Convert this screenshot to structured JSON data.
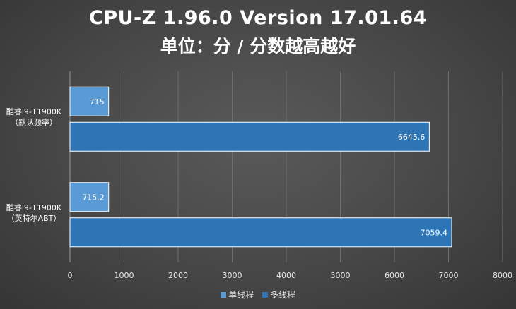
{
  "title": "CPU-Z 1.96.0 Version 17.01.64",
  "subtitle": "单位：分 / 分数越高越好",
  "colors": {
    "single": "#5b9bd5",
    "multi": "#2e75b6",
    "grid": "#6e6e6e",
    "axis_text": "#e6e6e6"
  },
  "chart_data": {
    "type": "bar",
    "orientation": "horizontal",
    "title": "CPU-Z 1.96.0 Version 17.01.64",
    "subtitle": "单位：分 / 分数越高越好",
    "categories": [
      {
        "line1": "酷睿i9-11900K",
        "line2": "（默认频率）"
      },
      {
        "line1": "酷睿i9-11900K",
        "line2": "（英特尔ABT）"
      }
    ],
    "series": [
      {
        "name": "单线程",
        "values": [
          715,
          715.2
        ],
        "labels": [
          "715",
          "715.2"
        ]
      },
      {
        "name": "多线程",
        "values": [
          6645.6,
          7059.4
        ],
        "labels": [
          "6645.6",
          "7059.4"
        ]
      }
    ],
    "xlim": [
      0,
      8000
    ],
    "xticks": [
      0,
      1000,
      2000,
      3000,
      4000,
      5000,
      6000,
      7000,
      8000
    ],
    "grid": true,
    "legend": "bottom"
  }
}
